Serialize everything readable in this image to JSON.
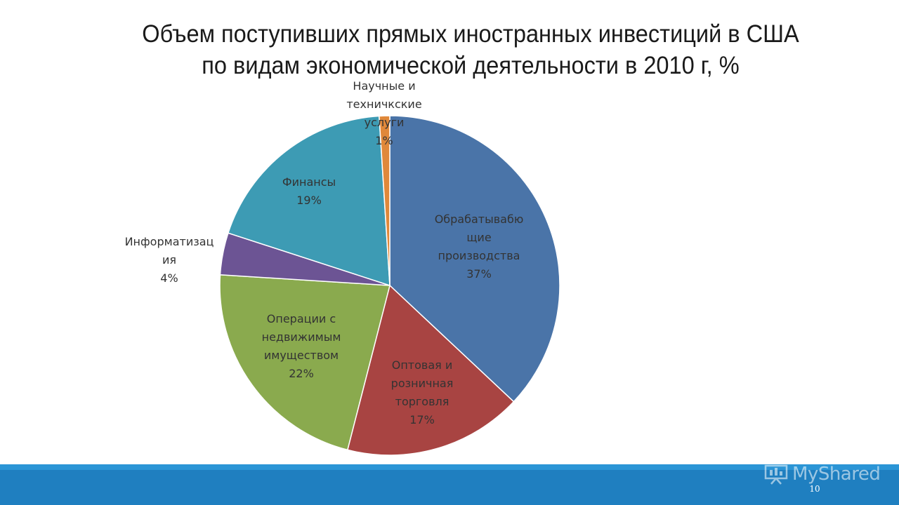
{
  "title_lines": [
    "Объем поступивших прямых иностранных инвестиций в США",
    "по видам экономической деятельности в 2010 г, %"
  ],
  "page_number": "10",
  "watermark": {
    "text": "MyShared",
    "icon": "presentation-board-icon"
  },
  "chart_data": {
    "type": "pie",
    "title": "Объем поступивших прямых иностранных инвестиций в США по видам экономической деятельности в 2010 г, %",
    "slices": [
      {
        "label_lines": [
          "Обрабатывабю",
          "щие",
          "производства"
        ],
        "pct_label": "37%",
        "value": 37,
        "color": "#4a74a8"
      },
      {
        "label_lines": [
          "Оптовая и",
          "розничная",
          "торговля"
        ],
        "pct_label": "17%",
        "value": 17,
        "color": "#a84442"
      },
      {
        "label_lines": [
          "Операции с",
          "недвижимым",
          "имуществом"
        ],
        "pct_label": "22%",
        "value": 22,
        "color": "#8aaa4e"
      },
      {
        "label_lines": [
          "Информатизац",
          "ия"
        ],
        "pct_label": "4%",
        "value": 4,
        "color": "#6c5494"
      },
      {
        "label_lines": [
          "Финансы"
        ],
        "pct_label": "19%",
        "value": 19,
        "color": "#3d9bb4"
      },
      {
        "label_lines": [
          "Научные и",
          "техничкские",
          "услуги"
        ],
        "pct_label": "1%",
        "value": 1,
        "color": "#e0883a"
      }
    ],
    "start_angle_deg": 0,
    "direction": "clockwise",
    "legend": "none"
  },
  "colors": {
    "footer": "#1f7fc0",
    "footer_top": "#2b95d6"
  }
}
